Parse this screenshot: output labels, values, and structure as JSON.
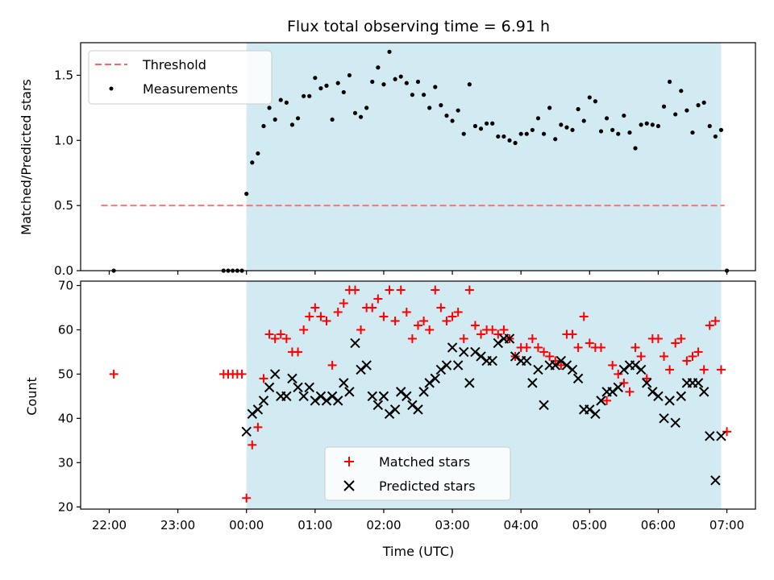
{
  "figure_title": "Flux total observing time = 6.91 h",
  "colors": {
    "highlight": "#add8e6",
    "threshold": "#ff6666",
    "measurements": "#000000",
    "matched": "#ff0000",
    "predicted": "#000000"
  },
  "chart_data": [
    {
      "type": "scatter",
      "panel": "top",
      "title": "Flux total observing time = 6.91 h",
      "xlabel": "",
      "ylabel": "Matched/Predicted stars",
      "xlim": [
        "21:35",
        "07:25"
      ],
      "ylim": [
        0,
        1.75
      ],
      "yticks": [
        0.0,
        0.5,
        1.0,
        1.5
      ],
      "ytick_labels": [
        "0.0",
        "0.5",
        "1.0",
        "1.5"
      ],
      "observing_window": [
        "00:00",
        "06:55"
      ],
      "legend_position": "top-left",
      "threshold": {
        "name": "Threshold",
        "y": 0.5,
        "x": [
          "21:53",
          "06:58"
        ]
      },
      "series": [
        {
          "name": "Measurements",
          "x": [
            "22:04",
            "23:40",
            "23:44",
            "23:48",
            "23:52",
            "23:56",
            "00:00",
            "00:05",
            "00:10",
            "00:15",
            "00:20",
            "00:25",
            "00:30",
            "00:35",
            "00:40",
            "00:45",
            "00:50",
            "00:55",
            "01:00",
            "01:05",
            "01:10",
            "01:15",
            "01:20",
            "01:25",
            "01:30",
            "01:35",
            "01:40",
            "01:45",
            "01:50",
            "01:55",
            "02:00",
            "02:05",
            "02:10",
            "02:15",
            "02:20",
            "02:25",
            "02:30",
            "02:35",
            "02:40",
            "02:45",
            "02:50",
            "02:55",
            "03:00",
            "03:05",
            "03:10",
            "03:15",
            "03:20",
            "03:25",
            "03:30",
            "03:35",
            "03:40",
            "03:45",
            "03:50",
            "03:55",
            "04:00",
            "04:05",
            "04:10",
            "04:15",
            "04:20",
            "04:25",
            "04:30",
            "04:35",
            "04:40",
            "04:45",
            "04:50",
            "04:55",
            "05:00",
            "05:05",
            "05:10",
            "05:15",
            "05:20",
            "05:25",
            "05:30",
            "05:35",
            "05:40",
            "05:45",
            "05:50",
            "05:55",
            "06:00",
            "06:05",
            "06:10",
            "06:15",
            "06:20",
            "06:25",
            "06:30",
            "06:35",
            "06:40",
            "06:45",
            "06:50",
            "06:55",
            "07:00"
          ],
          "y": [
            0.0,
            0.0,
            0.0,
            0.0,
            0.0,
            0.0,
            0.59,
            0.83,
            0.9,
            1.11,
            1.25,
            1.16,
            1.31,
            1.29,
            1.12,
            1.17,
            1.34,
            1.34,
            1.48,
            1.4,
            1.42,
            1.16,
            1.44,
            1.37,
            1.5,
            1.21,
            1.18,
            1.25,
            1.45,
            1.56,
            1.43,
            1.68,
            1.47,
            1.49,
            1.44,
            1.35,
            1.45,
            1.35,
            1.25,
            1.41,
            1.27,
            1.19,
            1.15,
            1.23,
            1.05,
            1.43,
            1.11,
            1.09,
            1.13,
            1.13,
            1.03,
            1.03,
            1.0,
            0.98,
            1.05,
            1.05,
            1.08,
            1.17,
            1.05,
            1.25,
            1.01,
            1.12,
            1.1,
            1.08,
            1.24,
            1.15,
            1.33,
            1.3,
            1.07,
            1.17,
            1.08,
            1.05,
            1.19,
            1.06,
            0.94,
            1.12,
            1.13,
            1.12,
            1.11,
            1.26,
            1.45,
            1.2,
            1.38,
            1.23,
            1.06,
            1.27,
            1.29,
            1.11,
            1.03,
            1.08,
            0.0
          ]
        }
      ]
    },
    {
      "type": "scatter",
      "panel": "bottom",
      "title": "",
      "xlabel": "Time (UTC)",
      "ylabel": "Count",
      "xlim": [
        "21:35",
        "07:25"
      ],
      "ylim": [
        19.5,
        71
      ],
      "xticks": [
        "22:00",
        "23:00",
        "00:00",
        "01:00",
        "02:00",
        "03:00",
        "04:00",
        "05:00",
        "06:00",
        "07:00"
      ],
      "yticks": [
        20,
        30,
        40,
        50,
        60,
        70
      ],
      "observing_window": [
        "00:00",
        "06:55"
      ],
      "legend_position": "bottom-center",
      "series": [
        {
          "name": "Matched stars",
          "marker": "+",
          "x": [
            "22:04",
            "23:40",
            "23:44",
            "23:48",
            "23:52",
            "23:56",
            "00:00",
            "00:05",
            "00:10",
            "00:15",
            "00:20",
            "00:25",
            "00:30",
            "00:35",
            "00:40",
            "00:45",
            "00:50",
            "00:55",
            "01:00",
            "01:05",
            "01:10",
            "01:15",
            "01:20",
            "01:25",
            "01:30",
            "01:35",
            "01:40",
            "01:45",
            "01:50",
            "01:55",
            "02:00",
            "02:05",
            "02:10",
            "02:15",
            "02:20",
            "02:25",
            "02:30",
            "02:35",
            "02:40",
            "02:45",
            "02:50",
            "02:55",
            "03:00",
            "03:05",
            "03:10",
            "03:15",
            "03:20",
            "03:25",
            "03:30",
            "03:35",
            "03:40",
            "03:45",
            "03:50",
            "03:55",
            "04:00",
            "04:05",
            "04:10",
            "04:15",
            "04:20",
            "04:25",
            "04:30",
            "04:35",
            "04:40",
            "04:45",
            "04:50",
            "04:55",
            "05:00",
            "05:05",
            "05:10",
            "05:15",
            "05:20",
            "05:25",
            "05:30",
            "05:35",
            "05:40",
            "05:45",
            "05:50",
            "05:55",
            "06:00",
            "06:05",
            "06:10",
            "06:15",
            "06:20",
            "06:25",
            "06:30",
            "06:35",
            "06:40",
            "06:45",
            "06:50",
            "06:55",
            "07:00"
          ],
          "y": [
            50,
            50,
            50,
            50,
            50,
            50,
            22,
            34,
            38,
            49,
            59,
            58,
            59,
            58,
            55,
            55,
            60,
            63,
            65,
            63,
            62,
            52,
            64,
            66,
            69,
            69,
            60,
            65,
            65,
            67,
            63,
            69,
            62,
            69,
            64,
            58,
            61,
            62,
            60,
            69,
            65,
            62,
            63,
            64,
            58,
            69,
            61,
            59,
            60,
            60,
            59,
            60,
            58,
            54,
            56,
            56,
            58,
            56,
            55,
            54,
            53,
            52,
            59,
            59,
            56,
            63,
            57,
            56,
            56,
            44,
            52,
            50,
            48,
            46,
            56,
            54,
            49,
            58,
            58,
            54,
            51,
            57,
            58,
            53,
            54,
            55,
            51,
            61,
            62,
            51,
            37
          ]
        },
        {
          "name": "Predicted stars",
          "marker": "x",
          "x": [
            "00:00",
            "00:05",
            "00:10",
            "00:15",
            "00:20",
            "00:25",
            "00:30",
            "00:35",
            "00:40",
            "00:45",
            "00:50",
            "00:55",
            "01:00",
            "01:05",
            "01:10",
            "01:15",
            "01:20",
            "01:25",
            "01:30",
            "01:35",
            "01:40",
            "01:45",
            "01:50",
            "01:55",
            "02:00",
            "02:05",
            "02:10",
            "02:15",
            "02:20",
            "02:25",
            "02:30",
            "02:35",
            "02:40",
            "02:45",
            "02:50",
            "02:55",
            "03:00",
            "03:05",
            "03:10",
            "03:15",
            "03:20",
            "03:25",
            "03:30",
            "03:35",
            "03:40",
            "03:45",
            "03:50",
            "03:55",
            "04:00",
            "04:05",
            "04:10",
            "04:15",
            "04:20",
            "04:25",
            "04:30",
            "04:35",
            "04:40",
            "04:45",
            "04:50",
            "04:55",
            "05:00",
            "05:05",
            "05:10",
            "05:15",
            "05:20",
            "05:25",
            "05:30",
            "05:35",
            "05:40",
            "05:45",
            "05:50",
            "05:55",
            "06:00",
            "06:05",
            "06:10",
            "06:15",
            "06:20",
            "06:25",
            "06:30",
            "06:35",
            "06:40",
            "06:45",
            "06:50",
            "06:55"
          ],
          "y": [
            37,
            41,
            42,
            44,
            47,
            50,
            45,
            45,
            49,
            47,
            45,
            47,
            44,
            45,
            44,
            45,
            44,
            48,
            46,
            57,
            51,
            52,
            45,
            43,
            45,
            41,
            42,
            46,
            45,
            43,
            42,
            46,
            48,
            49,
            51,
            52,
            56,
            52,
            55,
            48,
            55,
            54,
            53,
            53,
            57,
            58,
            58,
            54,
            53,
            53,
            48,
            51,
            43,
            52,
            52,
            53,
            52,
            51,
            49,
            42,
            42,
            41,
            44,
            46,
            46,
            47,
            51,
            52,
            52,
            51,
            48,
            46,
            45,
            40,
            44,
            39,
            45,
            48,
            48,
            48,
            46,
            36,
            26,
            36
          ]
        }
      ]
    }
  ]
}
